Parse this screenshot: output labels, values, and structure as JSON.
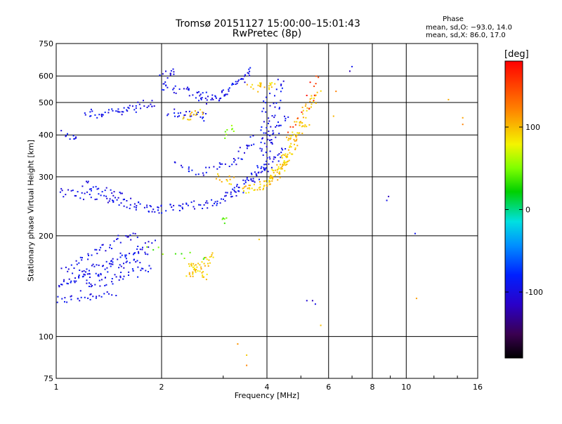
{
  "chart_data": {
    "type": "scatter",
    "title": "Tromsø 20151127 15:00:00–15:01:43",
    "subtitle": "RwPretec (8p)",
    "phase_legend": {
      "heading": "Phase",
      "o_mode": "mean, sd,O: −93.0, 14.0",
      "x_mode": "mean, sd,X:  86.0, 17.0"
    },
    "xlabel": "Frequency [MHz]",
    "ylabel": "Stationary phase Virtual Height [km]",
    "x_scale": "log",
    "y_scale": "log",
    "xlim": [
      1,
      16
    ],
    "ylim": [
      75,
      750
    ],
    "x_ticks": [
      {
        "v": 1,
        "label": "1"
      },
      {
        "v": 2,
        "label": "2"
      },
      {
        "v": 4,
        "label": "4"
      },
      {
        "v": 6,
        "label": "6"
      },
      {
        "v": 8,
        "label": "8"
      },
      {
        "v": 10,
        "label": "10"
      },
      {
        "v": 16,
        "label": "16"
      }
    ],
    "y_ticks": [
      {
        "v": 75,
        "label": "75"
      },
      {
        "v": 100,
        "label": "100"
      },
      {
        "v": 200,
        "label": "200"
      },
      {
        "v": 300,
        "label": "300"
      },
      {
        "v": 400,
        "label": "400"
      },
      {
        "v": 500,
        "label": "500"
      },
      {
        "v": 600,
        "label": "600"
      },
      {
        "v": 750,
        "label": "750"
      }
    ],
    "grid": true,
    "colorbar": {
      "unit": "[deg]",
      "range": [
        -180,
        180
      ],
      "ticks": [
        {
          "v": 100,
          "label": "100"
        },
        {
          "v": 0,
          "label": "0"
        },
        {
          "v": -100,
          "label": "-100"
        }
      ],
      "stops": [
        [
          0.0,
          "#000000"
        ],
        [
          0.08,
          "#3a0050"
        ],
        [
          0.18,
          "#2a00c8"
        ],
        [
          0.28,
          "#0020ff"
        ],
        [
          0.38,
          "#0090ff"
        ],
        [
          0.46,
          "#00e0e0"
        ],
        [
          0.56,
          "#00d000"
        ],
        [
          0.64,
          "#80ff00"
        ],
        [
          0.72,
          "#f4f400"
        ],
        [
          0.84,
          "#ff8000"
        ],
        [
          1.0,
          "#ff0000"
        ]
      ]
    },
    "series": [
      {
        "mode": "O",
        "phase": -95,
        "segments": [
          {
            "from": [
              1.0,
              128
            ],
            "to": [
              1.45,
              135
            ],
            "n": 28
          },
          {
            "from": [
              1.0,
              140
            ],
            "to": [
              1.8,
              175
            ],
            "n": 50
          },
          {
            "from": [
              1.1,
              150
            ],
            "to": [
              1.9,
              190
            ],
            "n": 50
          },
          {
            "from": [
              1.05,
              160
            ],
            "to": [
              1.7,
              205
            ],
            "n": 40
          },
          {
            "from": [
              1.2,
              140
            ],
            "to": [
              1.85,
              160
            ],
            "n": 40
          },
          {
            "from": [
              1.0,
              270
            ],
            "to": [
              1.55,
              255
            ],
            "n": 35
          },
          {
            "from": [
              1.2,
              285
            ],
            "to": [
              1.6,
              262
            ],
            "n": 25
          },
          {
            "from": [
              1.55,
              250
            ],
            "to": [
              2.0,
              240
            ],
            "n": 28
          },
          {
            "from": [
              2.0,
              240
            ],
            "to": [
              2.8,
              250
            ],
            "n": 32
          },
          {
            "from": [
              2.8,
              250
            ],
            "to": [
              3.4,
              272
            ],
            "n": 22
          },
          {
            "from": [
              3.2,
              270
            ],
            "to": [
              4.0,
              330
            ],
            "n": 30
          },
          {
            "from": [
              3.6,
              290
            ],
            "to": [
              4.5,
              360
            ],
            "n": 30
          },
          {
            "from": [
              3.2,
              330
            ],
            "to": [
              3.7,
              390
            ],
            "n": 20
          },
          {
            "from": [
              2.6,
              310
            ],
            "to": [
              3.1,
              330
            ],
            "n": 12
          },
          {
            "from": [
              2.2,
              330
            ],
            "to": [
              2.6,
              310
            ],
            "n": 12
          },
          {
            "from": [
              1.05,
              400
            ],
            "to": [
              1.15,
              385
            ],
            "n": 10
          },
          {
            "from": [
              1.2,
              460
            ],
            "to": [
              1.5,
              470
            ],
            "n": 22
          },
          {
            "from": [
              1.5,
              470
            ],
            "to": [
              1.9,
              500
            ],
            "n": 28
          },
          {
            "from": [
              2.0,
              560
            ],
            "to": [
              2.7,
              520
            ],
            "n": 30
          },
          {
            "from": [
              2.1,
              470
            ],
            "to": [
              2.7,
              450
            ],
            "n": 25
          },
          {
            "from": [
              2.6,
              500
            ],
            "to": [
              3.0,
              530
            ],
            "n": 20
          },
          {
            "from": [
              3.0,
              530
            ],
            "to": [
              3.6,
              620
            ],
            "n": 30
          },
          {
            "from": [
              2.0,
              590
            ],
            "to": [
              2.2,
              620
            ],
            "n": 12
          },
          {
            "from": [
              3.9,
              350
            ],
            "to": [
              4.0,
              520
            ],
            "n": 26
          },
          {
            "from": [
              4.0,
              330
            ],
            "to": [
              4.4,
              590
            ],
            "n": 34
          },
          {
            "from": [
              4.1,
              380
            ],
            "to": [
              4.5,
              460
            ],
            "n": 15
          }
        ]
      },
      {
        "mode": "X",
        "phase": 95,
        "segments": [
          {
            "from": [
              3.4,
              275
            ],
            "to": [
              4.0,
              285
            ],
            "n": 30
          },
          {
            "from": [
              4.0,
              285
            ],
            "to": [
              4.6,
              340
            ],
            "n": 40
          },
          {
            "from": [
              4.2,
              300
            ],
            "to": [
              4.8,
              380
            ],
            "n": 40
          },
          {
            "from": [
              4.6,
              380
            ],
            "to": [
              5.2,
              430
            ],
            "n": 28
          },
          {
            "from": [
              4.9,
              430
            ],
            "to": [
              5.6,
              540
            ],
            "n": 28
          },
          {
            "from": [
              3.6,
              550
            ],
            "to": [
              4.2,
              570
            ],
            "n": 22
          },
          {
            "from": [
              2.9,
              300
            ],
            "to": [
              3.2,
              290
            ],
            "n": 12
          },
          {
            "from": [
              2.4,
              150
            ],
            "to": [
              2.8,
              175
            ],
            "n": 30
          },
          {
            "from": [
              2.4,
              165
            ],
            "to": [
              2.7,
              150
            ],
            "n": 22
          },
          {
            "from": [
              2.3,
              450
            ],
            "to": [
              2.6,
              470
            ],
            "n": 15
          }
        ]
      },
      {
        "mode": "X",
        "phase": 45,
        "segments": [
          {
            "from": [
              1.8,
              185
            ],
            "to": [
              2.7,
              170
            ],
            "n": 10
          },
          {
            "from": [
              3.0,
              220
            ],
            "to": [
              3.1,
              222
            ],
            "n": 5
          },
          {
            "from": [
              3.0,
              400
            ],
            "to": [
              3.2,
              420
            ],
            "n": 8
          }
        ]
      },
      {
        "mode": "X",
        "phase": 160,
        "segments": [
          {
            "from": [
              4.6,
              400
            ],
            "to": [
              5.5,
              520
            ],
            "n": 10
          },
          {
            "from": [
              5.3,
              540
            ],
            "to": [
              5.6,
              590
            ],
            "n": 6
          }
        ]
      },
      {
        "mode": "O",
        "phase": -105,
        "points": [
          [
            8.8,
            255
          ],
          [
            8.9,
            262
          ],
          [
            10.6,
            203
          ],
          [
            5.4,
            128
          ],
          [
            5.5,
            125
          ],
          [
            5.2,
            128
          ],
          [
            7.0,
            640
          ],
          [
            6.9,
            620
          ]
        ]
      },
      {
        "mode": "X",
        "phase": 110,
        "points": [
          [
            3.3,
            95
          ],
          [
            3.5,
            88
          ],
          [
            3.5,
            82
          ],
          [
            3.8,
            195
          ],
          [
            5.7,
            108
          ],
          [
            10.7,
            130
          ],
          [
            13.2,
            510
          ],
          [
            14.5,
            430
          ],
          [
            14.5,
            450
          ],
          [
            6.2,
            455
          ],
          [
            6.3,
            540
          ]
        ]
      }
    ]
  }
}
